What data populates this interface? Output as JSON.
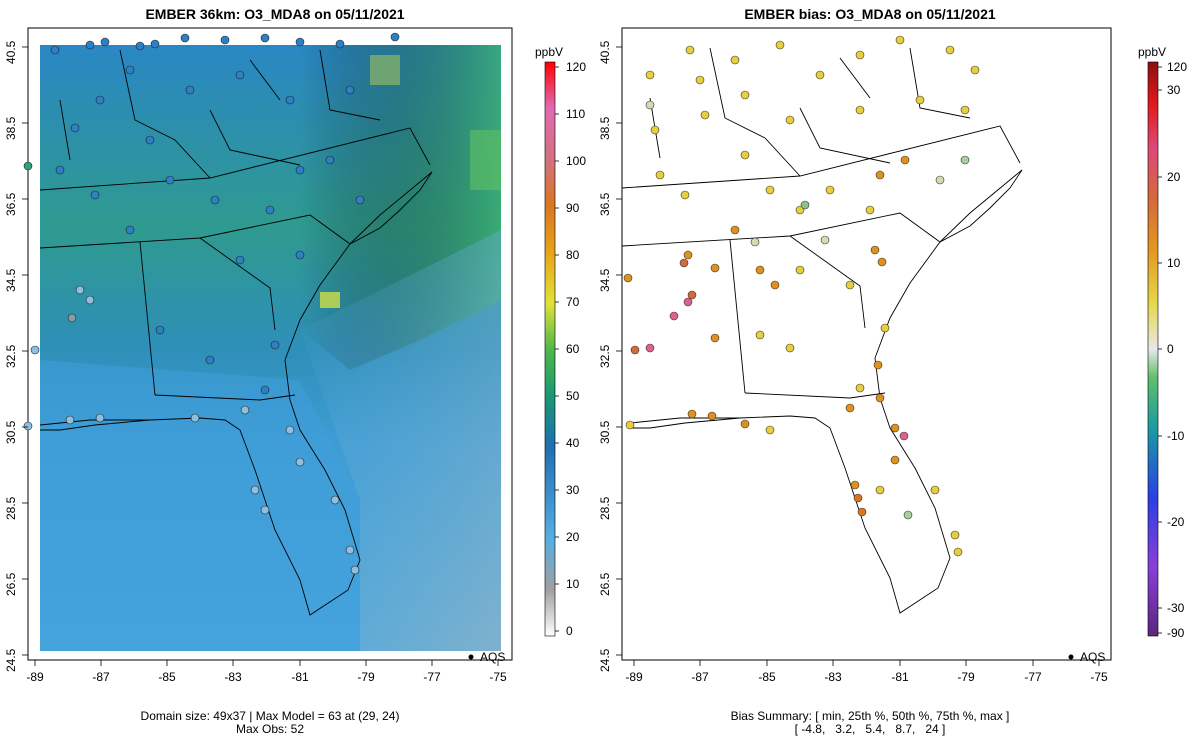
{
  "left_panel": {
    "title": "EMBER 36km: O3_MDA8 on 05/11/2021",
    "footer_line1": "Domain size: 49x37 | Max Model = 63 at (29, 24)",
    "footer_line2": "Max Obs: 52",
    "legend_label": "AQS",
    "colorbar": {
      "unit": "ppbV",
      "ticks": [
        "120",
        "110",
        "100",
        "90",
        "80",
        "70",
        "60",
        "50",
        "40",
        "30",
        "20",
        "10",
        "0"
      ]
    }
  },
  "right_panel": {
    "title": "EMBER bias: O3_MDA8 on 05/11/2021",
    "footer_line1": "Bias Summary: [ min, 25th %, 50th %, 75th %, max ]",
    "footer_line2": "[ -4.8,   3.2,   5.4,   8.7,   24 ]",
    "legend_label": "AQS",
    "colorbar": {
      "unit": "ppbV",
      "ticks": [
        "120",
        "30",
        "20",
        "10",
        "0",
        "-10",
        "-20",
        "-30",
        "-90"
      ]
    }
  },
  "axes": {
    "x_ticks": [
      "-89",
      "-87",
      "-85",
      "-83",
      "-81",
      "-79",
      "-77",
      "-75"
    ],
    "y_ticks": [
      "40.5",
      "38.5",
      "36.5",
      "34.5",
      "32.5",
      "30.5",
      "28.5",
      "26.5",
      "24.5"
    ]
  },
  "colors": {
    "ocean_light": "#55aee3",
    "land_mid": "#2a8fb5",
    "land_green": "#2fa07a",
    "bias_yellow": "#e6cf3a",
    "bias_orange": "#e0901c"
  }
}
